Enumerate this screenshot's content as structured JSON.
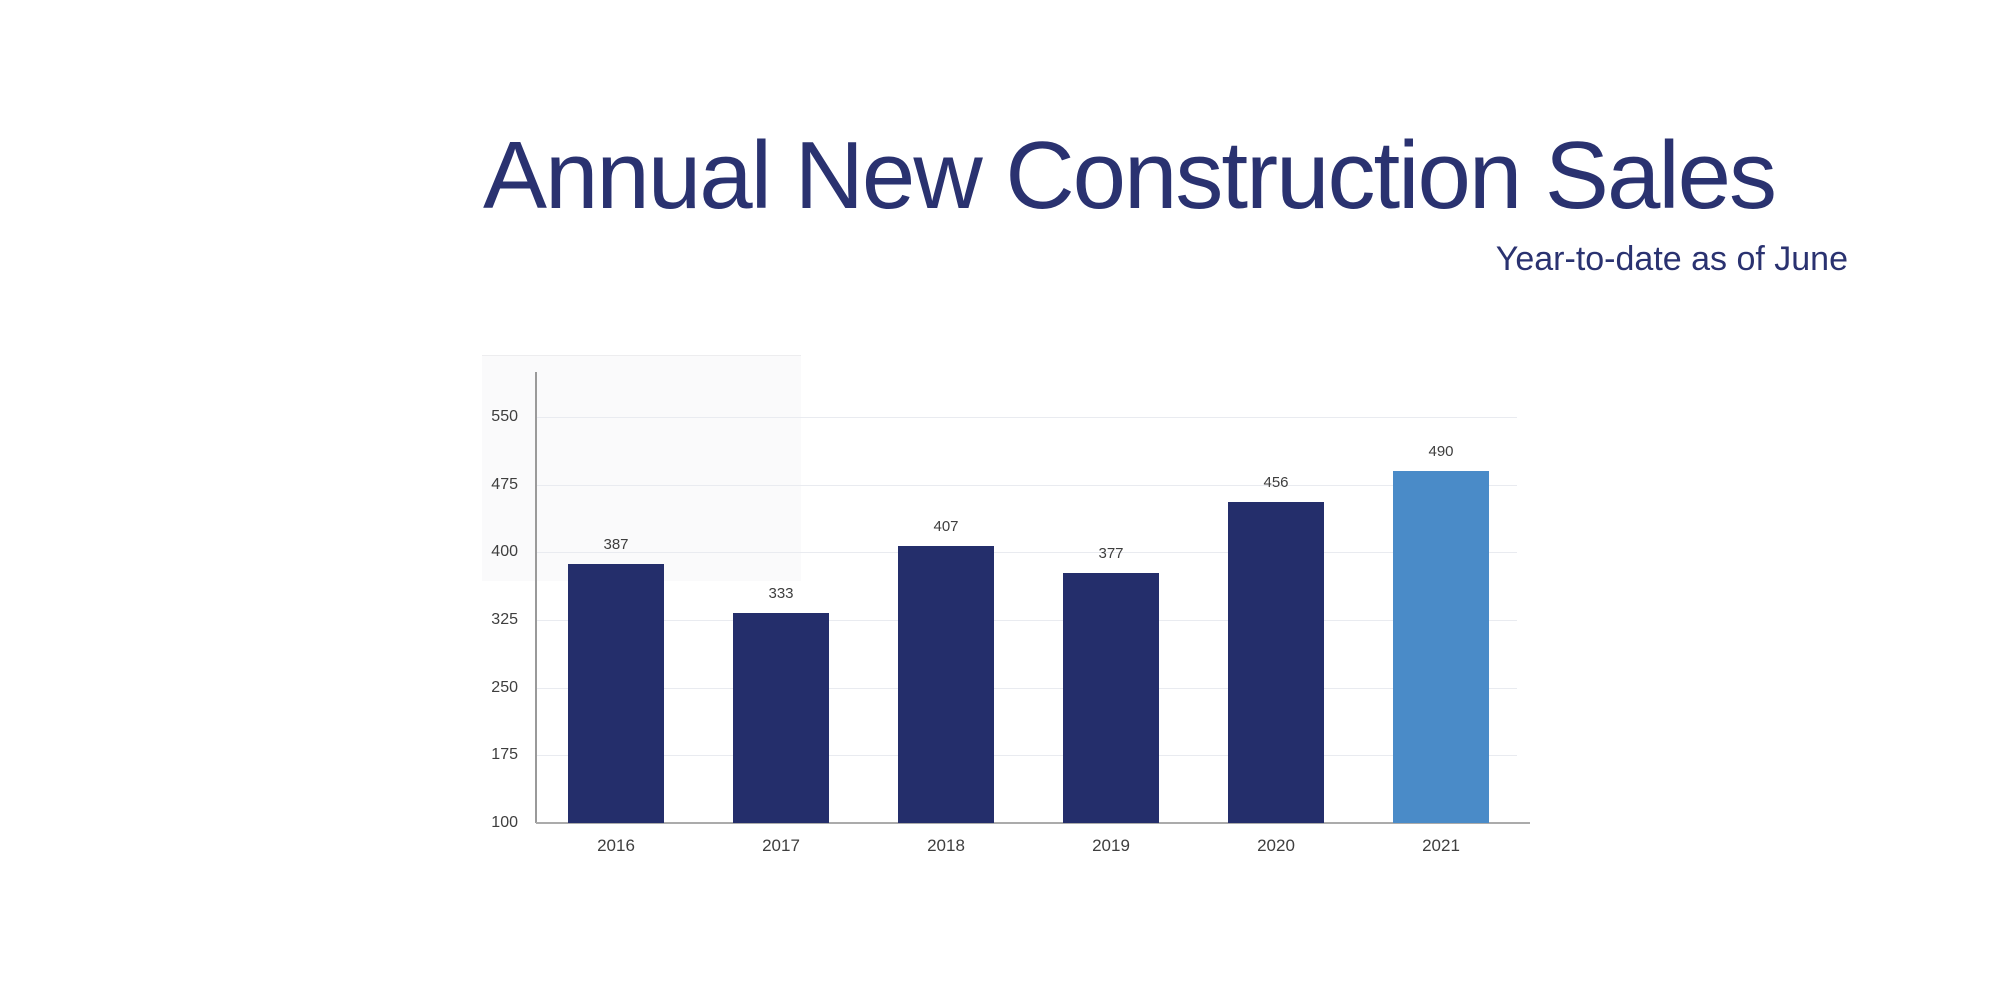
{
  "slide": {
    "title": "Annual New Construction Sales",
    "subtitle": "Year-to-date as of June"
  },
  "colors": {
    "title_text": "#2A3270",
    "subtitle_text": "#2A3270",
    "bar_default": "#242E6B",
    "bar_highlight": "#4A8BC8",
    "value_label_text": "#3E3E3E",
    "tick_label_text": "#3E3E3E",
    "gridline": "#E9EBF0",
    "y_axis_line": "#9A9A9A",
    "x_axis_line": "#ABABAB"
  },
  "chart_data": {
    "type": "bar",
    "title": "Annual New Construction Sales",
    "subtitle": "Year-to-date as of June",
    "categories": [
      "2016",
      "2017",
      "2018",
      "2019",
      "2020",
      "2021"
    ],
    "values": [
      387,
      333,
      407,
      377,
      456,
      490
    ],
    "highlight_index": 5,
    "y_ticks": [
      100,
      175,
      250,
      325,
      400,
      475,
      550
    ],
    "ylim": [
      100,
      600
    ],
    "xlabel": "",
    "ylabel": "",
    "grid": "horizontal",
    "legend": "none",
    "data_labels": true
  }
}
